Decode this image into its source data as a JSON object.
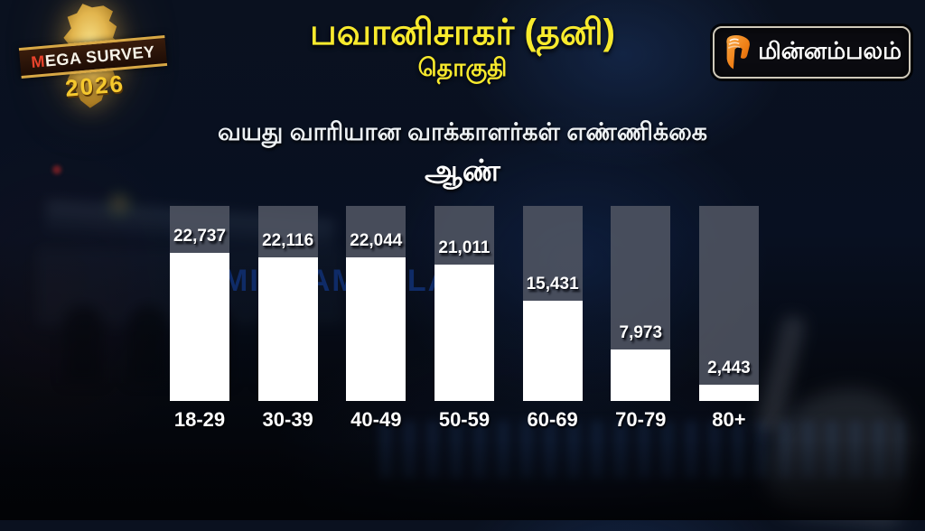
{
  "header": {
    "title": "பவானிசாகர் (தனி)",
    "subtitle": "தொகுதி",
    "mega_logo": {
      "initial": "M",
      "rest": "EGA SURVEY",
      "year": "2026"
    },
    "channel_logo": {
      "text": "மின்னம்பலம்",
      "icon": "minnambalam-m-icon",
      "accent": "#f08a1e"
    }
  },
  "chart_heading": "வயது வாரியான வாக்காளர்கள் எண்ணிக்கை",
  "gender_label": "ஆண்",
  "watermark": "MINNAMBALAM",
  "chart_data": {
    "type": "bar",
    "title": "வயது வாரியான வாக்காளர்கள் எண்ணிக்கை — ஆண் (பவானிசாகர் தனி தொகுதி)",
    "categories": [
      "18-29",
      "30-39",
      "40-49",
      "50-59",
      "60-69",
      "70-79",
      "80+"
    ],
    "values": [
      22737,
      22116,
      22044,
      21011,
      15431,
      7973,
      2443
    ],
    "value_labels": [
      "22,737",
      "22,116",
      "22,044",
      "21,011",
      "15,431",
      "7,973",
      "2,443"
    ],
    "xlabel": "",
    "ylabel": "",
    "ylim": [
      0,
      30000
    ],
    "grid": false,
    "legend": null,
    "bar_color": "#ffffff",
    "track_color": "#525764"
  },
  "colors": {
    "title_yellow": "#f8ea2d",
    "text_white": "#ffffff",
    "watermark_blue": "#102e6e",
    "background": "#070d18",
    "logo_gold": "#f5c82e",
    "logo_red": "#e8432c",
    "channel_orange": "#f08a1e"
  }
}
